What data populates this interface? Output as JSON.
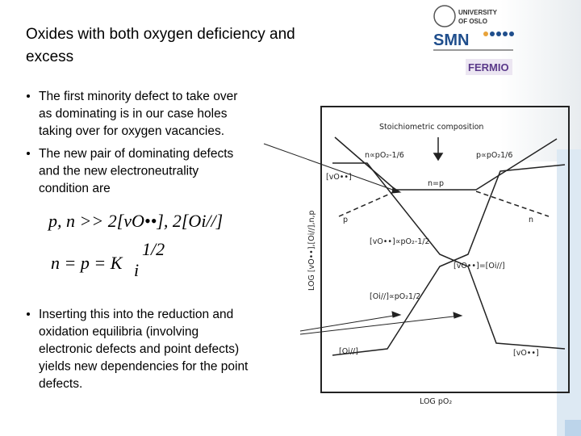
{
  "header": {
    "title_line1": "Oxides with both oxygen deficiency and",
    "title_line2": "excess",
    "logo_university": "UNIVERSITY",
    "logo_of_oslo": "OF OSLO",
    "logo_smn": "SMN",
    "logo_fermio": "FERMIO"
  },
  "bullets": [
    [
      "The first minority defect to take over",
      "as dominating is in our case holes",
      "taking over for oxygen vacancies."
    ],
    [
      "The new pair of dominating defects",
      "and the new electroneutrality",
      "condition are"
    ],
    [
      "Inserting this into the reduction and",
      "oxidation equilibria (involving",
      "electronic defects and point defects)",
      "yields new dependencies for the point",
      "defects."
    ]
  ],
  "equations": {
    "eq1": "p, n >> 2[vO••], 2[Oi//]",
    "eq2_main": "n = p = K",
    "eq2_sub": "i",
    "eq2_sup": "1/2"
  },
  "diagram": {
    "stoichiometric": "Stoichiometric composition",
    "n_left": "n∝pO₂-1/6",
    "p_right": "p∝pO₂1/6",
    "vo_top": "[vO••]",
    "n_eq_p": "n=p",
    "p_label": "p",
    "n_label": "n",
    "vo_slope": "[vO••]∝pO₂-1/2",
    "vo_eq_oi": "[vO••]=[Oi//]",
    "oi_slope": "[Oi//]∝pO₂1/2",
    "oi_bottom": "[Oi//]",
    "vo_bottom": "[vO••]",
    "x_axis": "LOG pO₂",
    "y_axis": "LOG [vO••],[Oi//],n,p"
  }
}
